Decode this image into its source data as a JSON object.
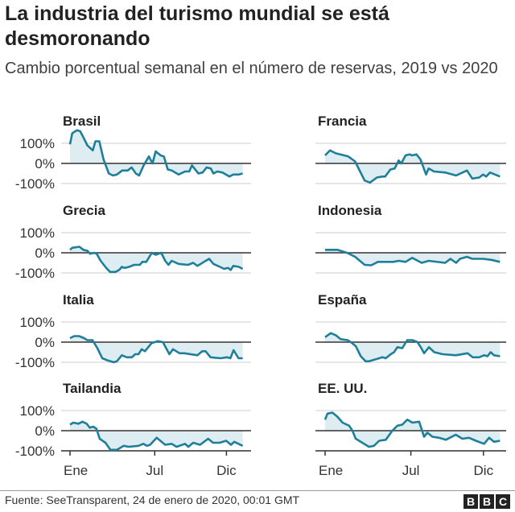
{
  "header": {
    "title": "La industria del turismo mundial se está desmoronando",
    "subtitle": "Cambio porcentual semanal en el número de reservas, 2019 vs 2020"
  },
  "footer": {
    "source": "Fuente: SeeTransparent, 24 de enero de 2020, 00:01 GMT",
    "logo": "BBC"
  },
  "colors": {
    "line": "#1f7f99",
    "fill": "#ddedf1",
    "zero": "#333333",
    "grid": "#dddddd"
  },
  "chart_data": {
    "type": "area",
    "x_unit": "week of year",
    "y_ticks": [
      "100%",
      "0%",
      "-100%"
    ],
    "y_tick_values": [
      100,
      0,
      -100
    ],
    "x_ticks": [
      {
        "label": "Ene",
        "week": 0
      },
      {
        "label": "Jul",
        "week": 26
      },
      {
        "label": "Dic",
        "week": 48
      }
    ],
    "ylim": [
      -100,
      100
    ],
    "grid": true,
    "panels": [
      {
        "name": "Brasil",
        "points": [
          [
            0,
            95
          ],
          [
            0.7,
            150
          ],
          [
            2.1,
            165
          ],
          [
            3.1,
            160
          ],
          [
            4.1,
            130
          ],
          [
            5.3,
            90
          ],
          [
            7,
            65
          ],
          [
            7.8,
            110
          ],
          [
            9,
            110
          ],
          [
            10.3,
            20
          ],
          [
            11.9,
            -50
          ],
          [
            13.2,
            -60
          ],
          [
            14.4,
            -55
          ],
          [
            16,
            -35
          ],
          [
            17.7,
            -35
          ],
          [
            18.9,
            -20
          ],
          [
            20.2,
            -50
          ],
          [
            21.2,
            -60
          ],
          [
            22.6,
            -10
          ],
          [
            24.2,
            35
          ],
          [
            25.3,
            0
          ],
          [
            26.3,
            60
          ],
          [
            27.8,
            40
          ],
          [
            28.8,
            35
          ],
          [
            30,
            -30
          ],
          [
            31.2,
            -35
          ],
          [
            33.3,
            -55
          ],
          [
            35.3,
            -40
          ],
          [
            36.6,
            -40
          ],
          [
            37.4,
            -10
          ],
          [
            39.4,
            -50
          ],
          [
            40.7,
            -45
          ],
          [
            41.9,
            -20
          ],
          [
            43.2,
            -25
          ],
          [
            44,
            -50
          ],
          [
            45.2,
            -40
          ],
          [
            46.8,
            -45
          ],
          [
            48.9,
            -65
          ],
          [
            50.1,
            -55
          ],
          [
            51.8,
            -55
          ],
          [
            53,
            -50
          ]
        ]
      },
      {
        "name": "Francia",
        "points": [
          [
            0,
            40
          ],
          [
            1.5,
            65
          ],
          [
            3.3,
            50
          ],
          [
            5.8,
            40
          ],
          [
            7,
            35
          ],
          [
            9.1,
            10
          ],
          [
            10.3,
            -30
          ],
          [
            12,
            -85
          ],
          [
            13.6,
            -95
          ],
          [
            15.7,
            -70
          ],
          [
            17.4,
            -65
          ],
          [
            18.2,
            -65
          ],
          [
            19.8,
            -30
          ],
          [
            21.1,
            -25
          ],
          [
            22.3,
            15
          ],
          [
            23.1,
            0
          ],
          [
            24.4,
            40
          ],
          [
            25.6,
            45
          ],
          [
            26.4,
            40
          ],
          [
            27.7,
            45
          ],
          [
            28.9,
            20
          ],
          [
            30.6,
            -55
          ],
          [
            31.4,
            -25
          ],
          [
            33,
            -40
          ],
          [
            36.4,
            -45
          ],
          [
            39.7,
            -60
          ],
          [
            43,
            -35
          ],
          [
            44.6,
            -75
          ],
          [
            46.7,
            -70
          ],
          [
            47.9,
            -55
          ],
          [
            48.8,
            -65
          ],
          [
            50,
            -45
          ],
          [
            53,
            -65
          ]
        ]
      },
      {
        "name": "Grecia",
        "points": [
          [
            0,
            15
          ],
          [
            0.7,
            25
          ],
          [
            2.9,
            30
          ],
          [
            4.1,
            15
          ],
          [
            5.3,
            10
          ],
          [
            6.2,
            -5
          ],
          [
            7.4,
            0
          ],
          [
            8.2,
            -5
          ],
          [
            9.4,
            -40
          ],
          [
            11.1,
            -75
          ],
          [
            12.3,
            -95
          ],
          [
            13.9,
            -95
          ],
          [
            15.1,
            -85
          ],
          [
            15.9,
            -70
          ],
          [
            16.8,
            -75
          ],
          [
            18.1,
            -70
          ],
          [
            19.7,
            -60
          ],
          [
            21.4,
            -60
          ],
          [
            22.2,
            -45
          ],
          [
            23.4,
            -45
          ],
          [
            25.1,
            0
          ],
          [
            26.3,
            -10
          ],
          [
            28,
            0
          ],
          [
            29.2,
            -40
          ],
          [
            30.2,
            -60
          ],
          [
            31.2,
            -40
          ],
          [
            33.3,
            -55
          ],
          [
            36.2,
            -60
          ],
          [
            37.8,
            -50
          ],
          [
            39.1,
            -65
          ],
          [
            41.1,
            -45
          ],
          [
            42.7,
            -30
          ],
          [
            44,
            -55
          ],
          [
            46,
            -70
          ],
          [
            47.3,
            -80
          ],
          [
            48.5,
            -75
          ],
          [
            49.3,
            -85
          ],
          [
            50.1,
            -65
          ],
          [
            51.8,
            -70
          ],
          [
            53,
            -80
          ]
        ]
      },
      {
        "name": "Indonesia",
        "points": [
          [
            0,
            15
          ],
          [
            3.7,
            15
          ],
          [
            6.6,
            0
          ],
          [
            9.1,
            -20
          ],
          [
            12,
            -60
          ],
          [
            14,
            -62
          ],
          [
            16,
            -45
          ],
          [
            20.7,
            -45
          ],
          [
            22.3,
            -40
          ],
          [
            24.4,
            -45
          ],
          [
            26.4,
            -25
          ],
          [
            29.3,
            -50
          ],
          [
            31.4,
            -40
          ],
          [
            36.4,
            -50
          ],
          [
            38,
            -30
          ],
          [
            39.7,
            -50
          ],
          [
            40.9,
            -30
          ],
          [
            43,
            -20
          ],
          [
            44.6,
            -30
          ],
          [
            47.9,
            -30
          ],
          [
            50.4,
            -35
          ],
          [
            53,
            -45
          ]
        ]
      },
      {
        "name": "Italia",
        "points": [
          [
            0,
            20
          ],
          [
            1.3,
            30
          ],
          [
            2.8,
            30
          ],
          [
            4.3,
            20
          ],
          [
            5.3,
            10
          ],
          [
            6.9,
            10
          ],
          [
            8.4,
            -30
          ],
          [
            9.9,
            -80
          ],
          [
            11.4,
            -90
          ],
          [
            13.4,
            -100
          ],
          [
            14.4,
            -95
          ],
          [
            15.9,
            -65
          ],
          [
            17.4,
            -75
          ],
          [
            19,
            -75
          ],
          [
            20,
            -60
          ],
          [
            21,
            -60
          ],
          [
            22,
            -35
          ],
          [
            23,
            -45
          ],
          [
            25,
            -5
          ],
          [
            27,
            5
          ],
          [
            28.5,
            0
          ],
          [
            30.5,
            -60
          ],
          [
            31.6,
            -35
          ],
          [
            33.6,
            -55
          ],
          [
            35.1,
            -55
          ],
          [
            39.1,
            -65
          ],
          [
            40.6,
            -45
          ],
          [
            41.6,
            -45
          ],
          [
            43.1,
            -75
          ],
          [
            46.2,
            -80
          ],
          [
            48.2,
            -75
          ],
          [
            49.2,
            -80
          ],
          [
            50.2,
            -40
          ],
          [
            51.7,
            -80
          ],
          [
            53,
            -80
          ]
        ]
      },
      {
        "name": "España",
        "points": [
          [
            0,
            25
          ],
          [
            1.7,
            45
          ],
          [
            3.2,
            35
          ],
          [
            4.7,
            15
          ],
          [
            6.8,
            10
          ],
          [
            7.8,
            0
          ],
          [
            9.3,
            -20
          ],
          [
            10.8,
            -70
          ],
          [
            12.3,
            -95
          ],
          [
            13.3,
            -95
          ],
          [
            15.4,
            -85
          ],
          [
            17.4,
            -75
          ],
          [
            18.4,
            -80
          ],
          [
            19.9,
            -60
          ],
          [
            20.9,
            -50
          ],
          [
            21.9,
            -25
          ],
          [
            23.4,
            -30
          ],
          [
            24.9,
            10
          ],
          [
            26.5,
            10
          ],
          [
            28,
            0
          ],
          [
            29,
            -25
          ],
          [
            30,
            -55
          ],
          [
            31.5,
            -25
          ],
          [
            33.1,
            -50
          ],
          [
            35.6,
            -60
          ],
          [
            39.6,
            -65
          ],
          [
            43.2,
            -55
          ],
          [
            44.7,
            -75
          ],
          [
            46.7,
            -75
          ],
          [
            48.2,
            -65
          ],
          [
            49.2,
            -70
          ],
          [
            50.2,
            -50
          ],
          [
            51.2,
            -65
          ],
          [
            53,
            -70
          ]
        ]
      },
      {
        "name": "Tailandia",
        "points": [
          [
            0,
            30
          ],
          [
            1,
            40
          ],
          [
            2.6,
            35
          ],
          [
            3.8,
            45
          ],
          [
            5.1,
            35
          ],
          [
            6.1,
            15
          ],
          [
            7.1,
            20
          ],
          [
            8.1,
            10
          ],
          [
            9.1,
            -40
          ],
          [
            10.9,
            -60
          ],
          [
            12.4,
            -95
          ],
          [
            14.4,
            -95
          ],
          [
            16.5,
            -75
          ],
          [
            18,
            -80
          ],
          [
            21,
            -75
          ],
          [
            22.5,
            -65
          ],
          [
            23.6,
            -75
          ],
          [
            24.6,
            -70
          ],
          [
            26.6,
            -35
          ],
          [
            29.2,
            -70
          ],
          [
            31.2,
            -65
          ],
          [
            32.7,
            -80
          ],
          [
            35.3,
            -65
          ],
          [
            36.3,
            -80
          ],
          [
            37.8,
            -60
          ],
          [
            39.9,
            -70
          ],
          [
            42.4,
            -40
          ],
          [
            43.9,
            -60
          ],
          [
            45.9,
            -60
          ],
          [
            47.9,
            -50
          ],
          [
            49.4,
            -70
          ],
          [
            50.4,
            -55
          ],
          [
            53,
            -75
          ]
        ]
      },
      {
        "name": "EE. UU.",
        "points": [
          [
            0,
            55
          ],
          [
            0.7,
            85
          ],
          [
            2.2,
            90
          ],
          [
            3.7,
            70
          ],
          [
            5.3,
            40
          ],
          [
            7.3,
            25
          ],
          [
            8.3,
            0
          ],
          [
            9.3,
            -40
          ],
          [
            11.3,
            -60
          ],
          [
            13.3,
            -80
          ],
          [
            14.8,
            -75
          ],
          [
            16.4,
            -50
          ],
          [
            18.4,
            -45
          ],
          [
            20.4,
            0
          ],
          [
            21.9,
            25
          ],
          [
            23.4,
            30
          ],
          [
            24.9,
            55
          ],
          [
            26.5,
            40
          ],
          [
            28.5,
            45
          ],
          [
            30,
            -30
          ],
          [
            31,
            -10
          ],
          [
            32.5,
            -30
          ],
          [
            34.5,
            -35
          ],
          [
            36.6,
            -45
          ],
          [
            39.6,
            -20
          ],
          [
            41.6,
            -40
          ],
          [
            43.6,
            -35
          ],
          [
            45.7,
            -50
          ],
          [
            48.2,
            -65
          ],
          [
            49.7,
            -35
          ],
          [
            51.2,
            -55
          ],
          [
            53,
            -50
          ]
        ]
      }
    ]
  }
}
